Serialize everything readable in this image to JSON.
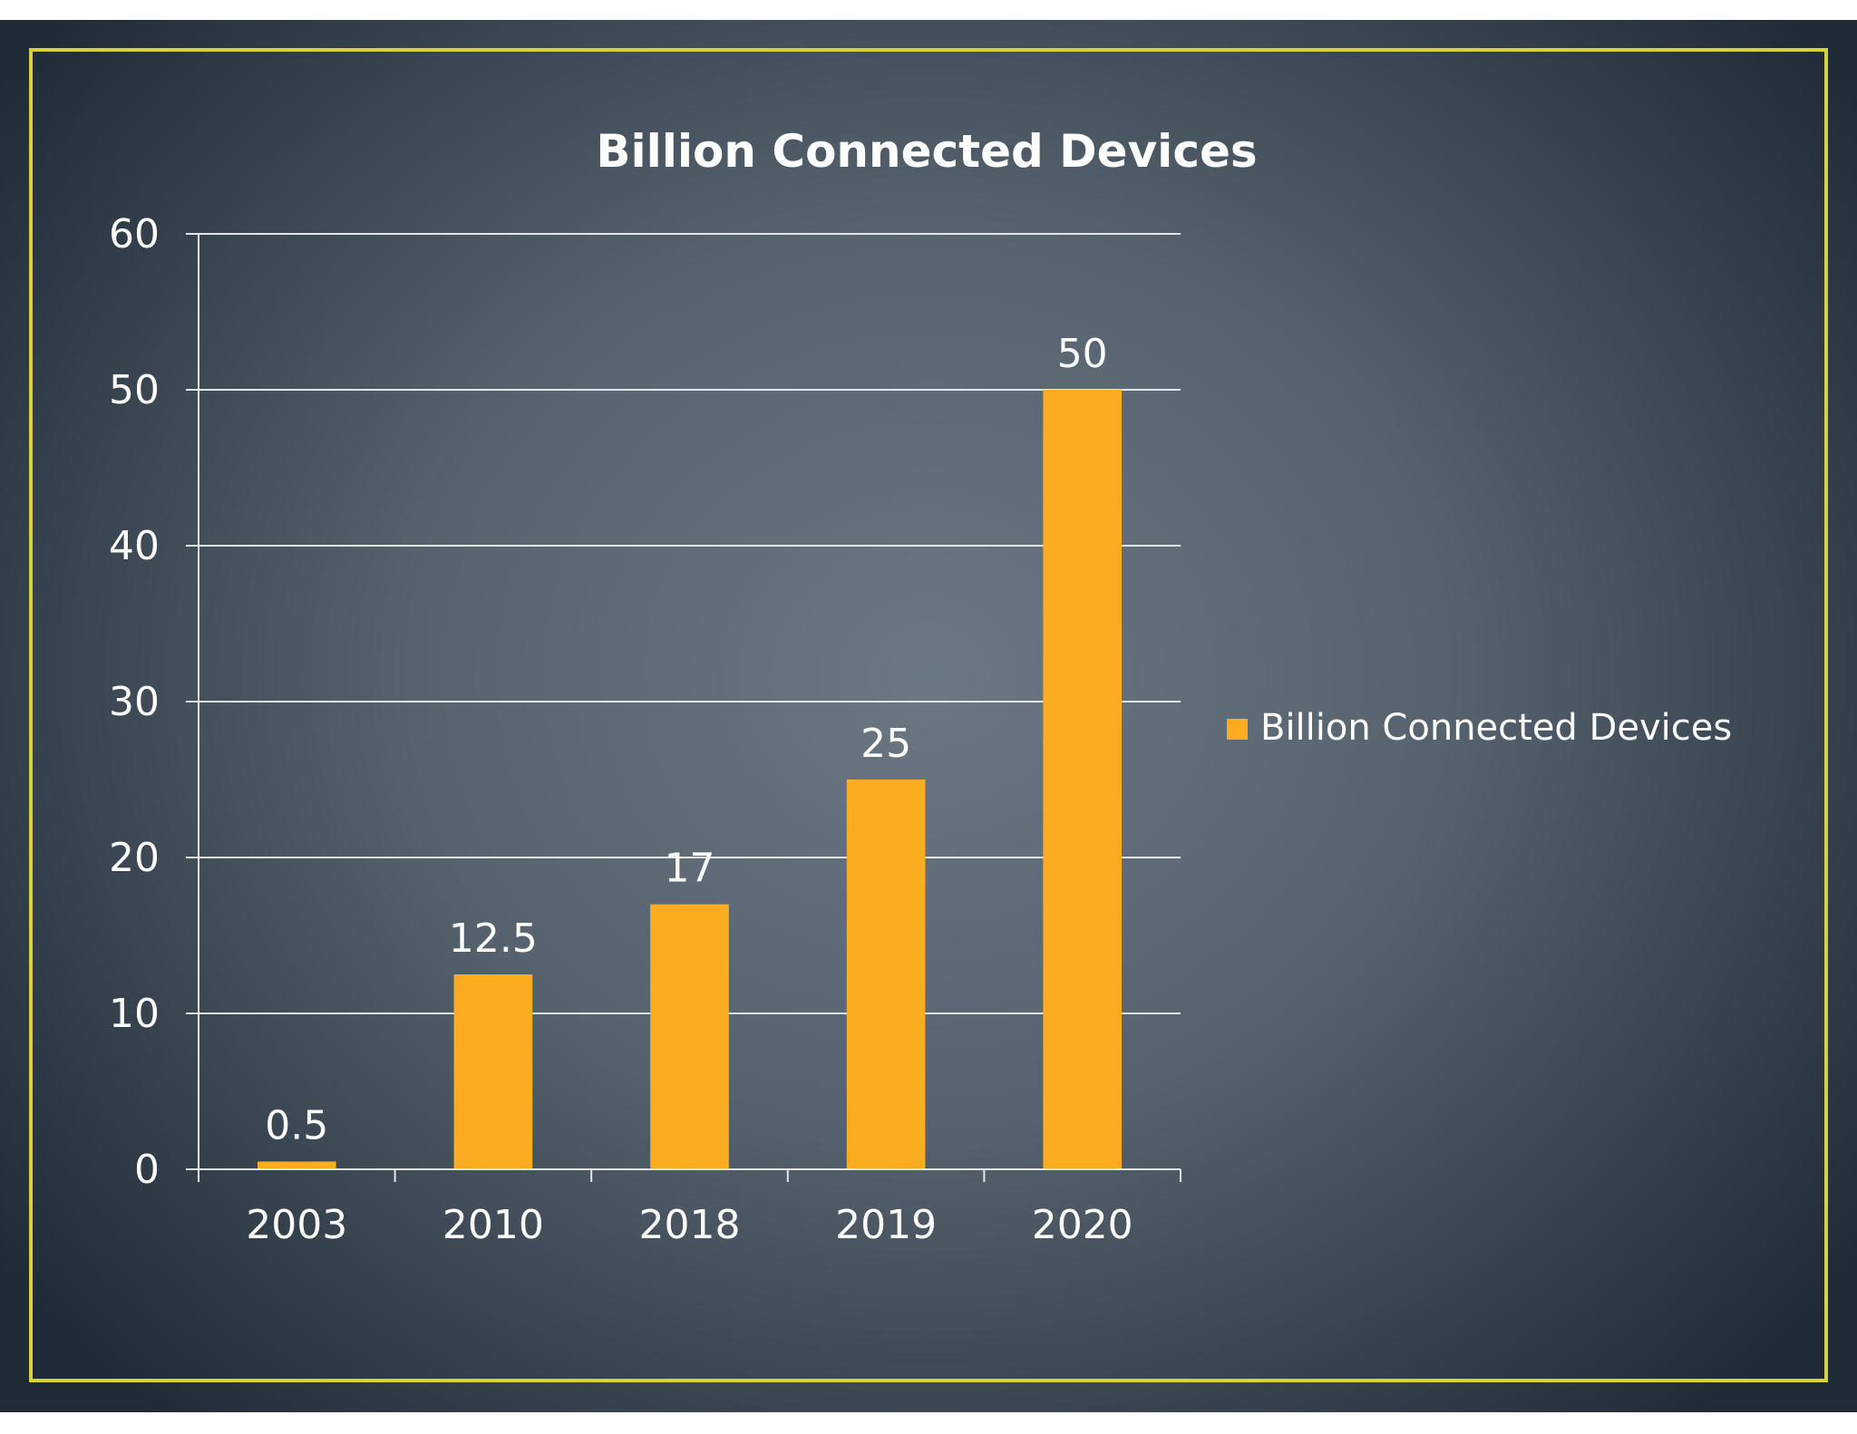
{
  "colors": {
    "bar": "#fbac20",
    "frame": "#d8d238",
    "text": "#ffffff",
    "gridline": "#e4e7ea"
  },
  "chart_data": {
    "type": "bar",
    "title": "Billion Connected Devices",
    "categories": [
      "2003",
      "2010",
      "2018",
      "2019",
      "2020"
    ],
    "series": [
      {
        "name": "Billion Connected Devices",
        "values": [
          0.5,
          12.5,
          17,
          25,
          50
        ],
        "data_labels": [
          "0.5",
          "12.5",
          "17",
          "25",
          "50"
        ]
      }
    ],
    "ylim": [
      0,
      60
    ],
    "yticks": [
      0,
      10,
      20,
      30,
      40,
      50,
      60
    ],
    "xlabel": "",
    "ylabel": "",
    "grid": true,
    "legend_position": "right"
  }
}
